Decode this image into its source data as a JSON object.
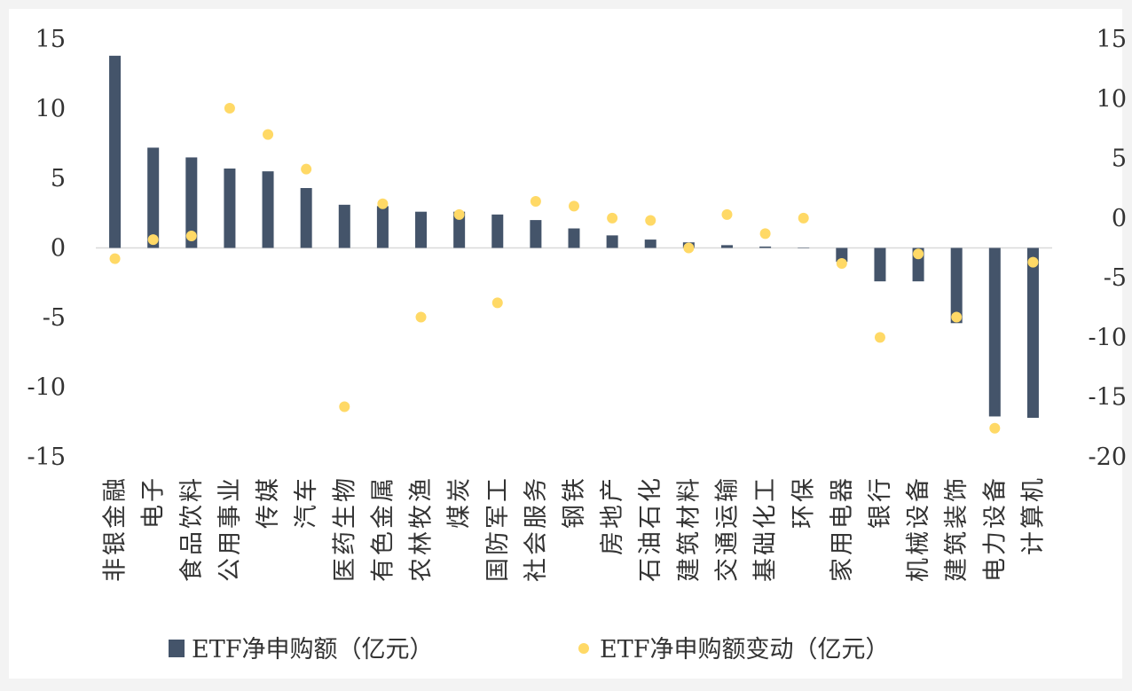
{
  "chart_data": {
    "type": "bar",
    "categories": [
      "非银金融",
      "电子",
      "食品饮料",
      "公用事业",
      "传媒",
      "汽车",
      "医药生物",
      "有色金属",
      "农林牧渔",
      "煤炭",
      "国防军工",
      "社会服务",
      "钢铁",
      "房地产",
      "石油石化",
      "建筑材料",
      "交通运输",
      "基础化工",
      "环保",
      "家用电器",
      "银行",
      "机械设备",
      "建筑装饰",
      "电力设备",
      "计算机"
    ],
    "series": [
      {
        "name": "ETF净申购额（亿元）",
        "axis": "left",
        "marker": "bar",
        "color": "#44546a",
        "values": [
          13.8,
          7.2,
          6.5,
          5.7,
          5.5,
          4.3,
          3.1,
          3.0,
          2.6,
          2.6,
          2.4,
          2.0,
          1.4,
          0.9,
          0.6,
          0.4,
          0.2,
          0.1,
          0.0,
          -1.0,
          -2.4,
          -2.4,
          -5.4,
          -12.1,
          -12.2
        ]
      },
      {
        "name": "ETF净申购额变动（亿元）",
        "axis": "right",
        "marker": "dot",
        "color": "#ffd966",
        "values": [
          -3.4,
          -1.8,
          -1.5,
          9.2,
          7.0,
          4.1,
          -15.8,
          1.2,
          -8.3,
          0.3,
          -7.1,
          1.4,
          1.0,
          0.0,
          -0.2,
          -2.5,
          0.3,
          -1.3,
          0.0,
          -3.8,
          -10.0,
          -3.0,
          -8.3,
          -17.6,
          -3.7
        ]
      }
    ],
    "yleft": {
      "ticks": [
        "15",
        "10",
        "5",
        "0",
        "-5",
        "-10",
        "-15"
      ],
      "range": [
        -15,
        15
      ]
    },
    "yright": {
      "ticks": [
        "15",
        "10",
        "5",
        "0",
        "-5",
        "-10",
        "-15",
        "-20"
      ],
      "range": [
        -20,
        15
      ]
    },
    "zero_line_color": "#d9d9d9",
    "grid": false,
    "legend_position": "bottom"
  }
}
